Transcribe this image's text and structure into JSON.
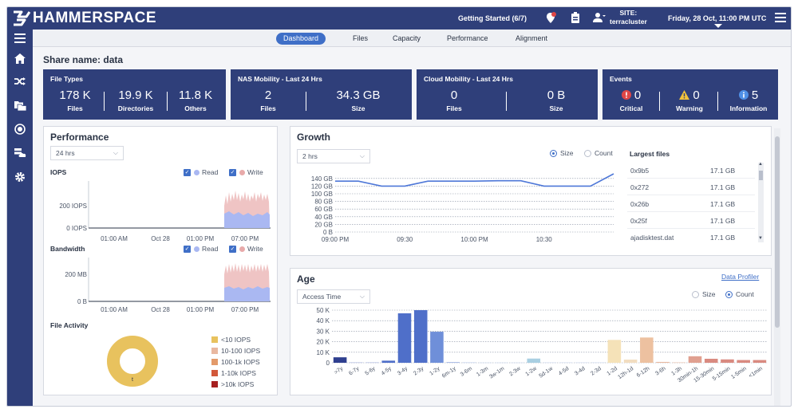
{
  "header": {
    "logo": "HAMMERSPACE",
    "getting_started": "Getting Started (6/7)",
    "site_label": "SITE:",
    "site_name": "terracluster",
    "datetime": "Friday, 28 Oct, 11:00 PM UTC"
  },
  "tabs": [
    "Dashboard",
    "Files",
    "Capacity",
    "Performance",
    "Alignment"
  ],
  "share_name": "Share name: data",
  "cards": {
    "file_types": {
      "title": "File Types",
      "stats": [
        {
          "value": "178 K",
          "label": "Files"
        },
        {
          "value": "19.9 K",
          "label": "Directories"
        },
        {
          "value": "11.8 K",
          "label": "Others"
        }
      ]
    },
    "nas": {
      "title": "NAS Mobility - Last 24 Hrs",
      "stats": [
        {
          "value": "2",
          "label": "Files"
        },
        {
          "value": "34.3 GB",
          "label": "Size"
        }
      ]
    },
    "cloud": {
      "title": "Cloud Mobility - Last 24 Hrs",
      "stats": [
        {
          "value": "0",
          "label": "Files"
        },
        {
          "value": "0 B",
          "label": "Size"
        }
      ]
    },
    "events": {
      "title": "Events",
      "stats": [
        {
          "value": "0",
          "label": "Critical",
          "color": "#e04646"
        },
        {
          "value": "0",
          "label": "Warning",
          "color": "#f2c23b"
        },
        {
          "value": "5",
          "label": "Information",
          "color": "#4f8fe6"
        }
      ]
    }
  },
  "performance": {
    "title": "Performance",
    "range": "24 hrs",
    "iops_label": "IOPS",
    "bandwidth_label": "Bandwidth",
    "read_label": "Read",
    "write_label": "Write",
    "read_color": "#aab8f2",
    "write_color": "#e8aaaa",
    "iops_ticks": [
      "200 IOPS",
      "0 IOPS"
    ],
    "bw_ticks": [
      "200 MB",
      "0 B"
    ],
    "time_ticks": [
      "01:00 AM",
      "Oct 28",
      "01:00 PM",
      "07:00 PM"
    ],
    "file_activity_label": "File Activity",
    "file_activity_center": "t",
    "file_activity_legend": [
      {
        "label": "<10 IOPS",
        "color": "#e8c25e"
      },
      {
        "label": "10-100 IOPS",
        "color": "#e9b8a0"
      },
      {
        "label": "100-1k IOPS",
        "color": "#e39a6a"
      },
      {
        "label": "1-10k IOPS",
        "color": "#d2583a"
      },
      {
        "label": ">10k IOPS",
        "color": "#a62020"
      }
    ]
  },
  "growth": {
    "title": "Growth",
    "range": "2 hrs",
    "size_label": "Size",
    "count_label": "Count",
    "largest_files_label": "Largest files",
    "largest_files": [
      {
        "name": "0x9b5",
        "size": "17.1 GB"
      },
      {
        "name": "0x272",
        "size": "17.1 GB"
      },
      {
        "name": "0x26b",
        "size": "17.1 GB"
      },
      {
        "name": "0x25f",
        "size": "17.1 GB"
      },
      {
        "name": "ajadisktest.dat",
        "size": "17.1 GB"
      }
    ]
  },
  "age": {
    "title": "Age",
    "range": "Access Time",
    "profiler_link": "Data Profiler",
    "size_label": "Size",
    "count_label": "Count"
  },
  "chart_data": [
    {
      "type": "line",
      "title": "Growth",
      "x": [
        "09:00 PM",
        "09:10 PM",
        "09:20 PM",
        "09:30 PM",
        "09:40 PM",
        "09:50 PM",
        "10:00 PM",
        "10:10 PM",
        "10:20 PM",
        "10:30 PM",
        "10:40 PM",
        "10:50 PM",
        "11:00 PM"
      ],
      "xticks": [
        "09:00 PM",
        "09:30",
        "10:00 PM",
        "10:30"
      ],
      "values": [
        133,
        133,
        120,
        120,
        133,
        133,
        133,
        134,
        134,
        120,
        120,
        120,
        152
      ],
      "yticks": [
        "140 GB",
        "120 GB",
        "100 GB",
        "80 GB",
        "60 GB",
        "40 GB",
        "20 GB",
        "0 B"
      ],
      "ylim": [
        0,
        150
      ],
      "color": "#4f78d8",
      "grid": true
    },
    {
      "type": "bar",
      "title": "Age",
      "categories": [
        ">7y",
        "6-7y",
        "5-6y",
        "4-5y",
        "3-4y",
        "2-3y",
        "1-2y",
        "6m-1y",
        "3-6m",
        "1-3m",
        "3w-1m",
        "2-3w",
        "1-2w",
        "5d-1w",
        "4-5d",
        "3-4d",
        "2-3d",
        "1-2d",
        "12h-1d",
        "6-12h",
        "3-6h",
        "1-3h",
        "30min-1h",
        "15-30min",
        "5-15min",
        "1-5min",
        "<1min"
      ],
      "values": [
        5200,
        300,
        300,
        2000,
        47000,
        50000,
        29500,
        600,
        300,
        200,
        200,
        200,
        4000,
        300,
        300,
        300,
        300,
        21700,
        3000,
        24000,
        800,
        300,
        6200,
        3800,
        3200,
        2600,
        2600
      ],
      "colors": [
        "#2f3f8f",
        "#9aa7d8",
        "#9aa7d8",
        "#4f6fc9",
        "#4f6fc9",
        "#4f6fc9",
        "#6f8fd9",
        "#9aaee0",
        "#b2c3e8",
        "#c9d6ee",
        "#c9d6ee",
        "#c9d6ee",
        "#a9cfe2",
        "#c9d6ee",
        "#c9d6ee",
        "#c9d6ee",
        "#c9d6ee",
        "#f5e2b8",
        "#f2ddc0",
        "#edc1a0",
        "#e8b8a0",
        "#e8b8a0",
        "#e0a090",
        "#d98a80",
        "#d98a80",
        "#d98a80",
        "#d98a80"
      ],
      "yticks": [
        "50 K",
        "40 K",
        "30 K",
        "20 K",
        "10 K",
        "0"
      ],
      "ylim": [
        0,
        50000
      ],
      "grid": true
    }
  ]
}
